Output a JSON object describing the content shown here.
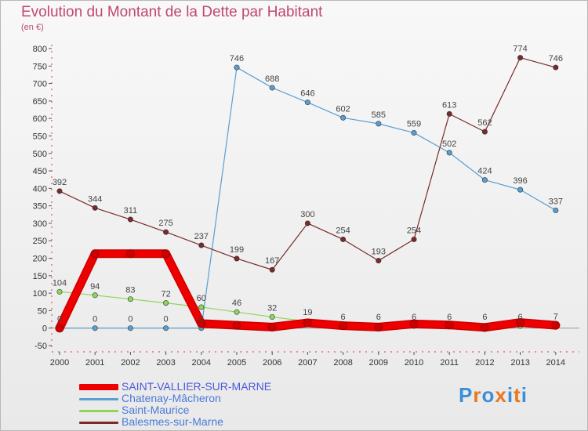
{
  "header": {
    "title": "Evolution du Montant de la Dette par Habitant",
    "subtitle": "(en €)"
  },
  "logo": {
    "text": "Proxiti",
    "colors": [
      "#3b8fd8",
      "#e8781e",
      "#3b8fd8",
      "#e8781e",
      "#3b8fd8",
      "#e8781e",
      "#3b8fd8"
    ]
  },
  "chart_data": {
    "type": "line",
    "title": "Evolution du Montant de la Dette par Habitant",
    "ylabel": "(en €)",
    "xlabel": "",
    "ylim": [
      -50,
      800
    ],
    "y_ticks": [
      -50,
      0,
      50,
      100,
      150,
      200,
      250,
      300,
      350,
      400,
      450,
      500,
      550,
      600,
      650,
      700,
      750,
      800
    ],
    "grid": false,
    "legend_position": "bottom-left",
    "categories": [
      "2000",
      "2001",
      "2002",
      "2003",
      "2004",
      "2005",
      "2006",
      "2007",
      "2008",
      "2009",
      "2010",
      "2011",
      "2012",
      "2013",
      "2014"
    ],
    "series": [
      {
        "name": "SAINT-VALLIER-SUR-MARNE",
        "color": "#ee0000",
        "width": "thick",
        "values": [
          0,
          213,
          213,
          213,
          13,
          8,
          3,
          15,
          7,
          3,
          12,
          9,
          2,
          16,
          8
        ]
      },
      {
        "name": "Chatenay-Mâcheron",
        "color": "#5a9fd0",
        "width": "thin",
        "values": [
          0,
          0,
          0,
          0,
          0,
          746,
          688,
          646,
          602,
          585,
          559,
          502,
          424,
          396,
          337
        ],
        "labels": [
          "0",
          "0",
          "0",
          "0",
          "0",
          "746",
          "688",
          "646",
          "602",
          "585",
          "559",
          "502",
          "424",
          "396",
          "337"
        ]
      },
      {
        "name": "Saint-Maurice",
        "color": "#8ed656",
        "width": "thin",
        "values": [
          104,
          94,
          83,
          72,
          60,
          46,
          32,
          19,
          6,
          6,
          6,
          6,
          6,
          6,
          7
        ],
        "labels": [
          "104",
          "94",
          "83",
          "72",
          "60",
          "46",
          "32",
          "19",
          "6",
          "6",
          "6",
          "6",
          "6",
          "6",
          "7"
        ]
      },
      {
        "name": "Balesmes-sur-Marne",
        "color": "#7a2a2a",
        "width": "thin",
        "values": [
          392,
          344,
          311,
          275,
          237,
          199,
          167,
          300,
          254,
          193,
          254,
          613,
          562,
          774,
          746
        ],
        "labels": [
          "392",
          "344",
          "311",
          "275",
          "237",
          "199",
          "167",
          "300",
          "254",
          "193",
          "254",
          "613",
          "562",
          "774",
          "746"
        ]
      }
    ]
  }
}
